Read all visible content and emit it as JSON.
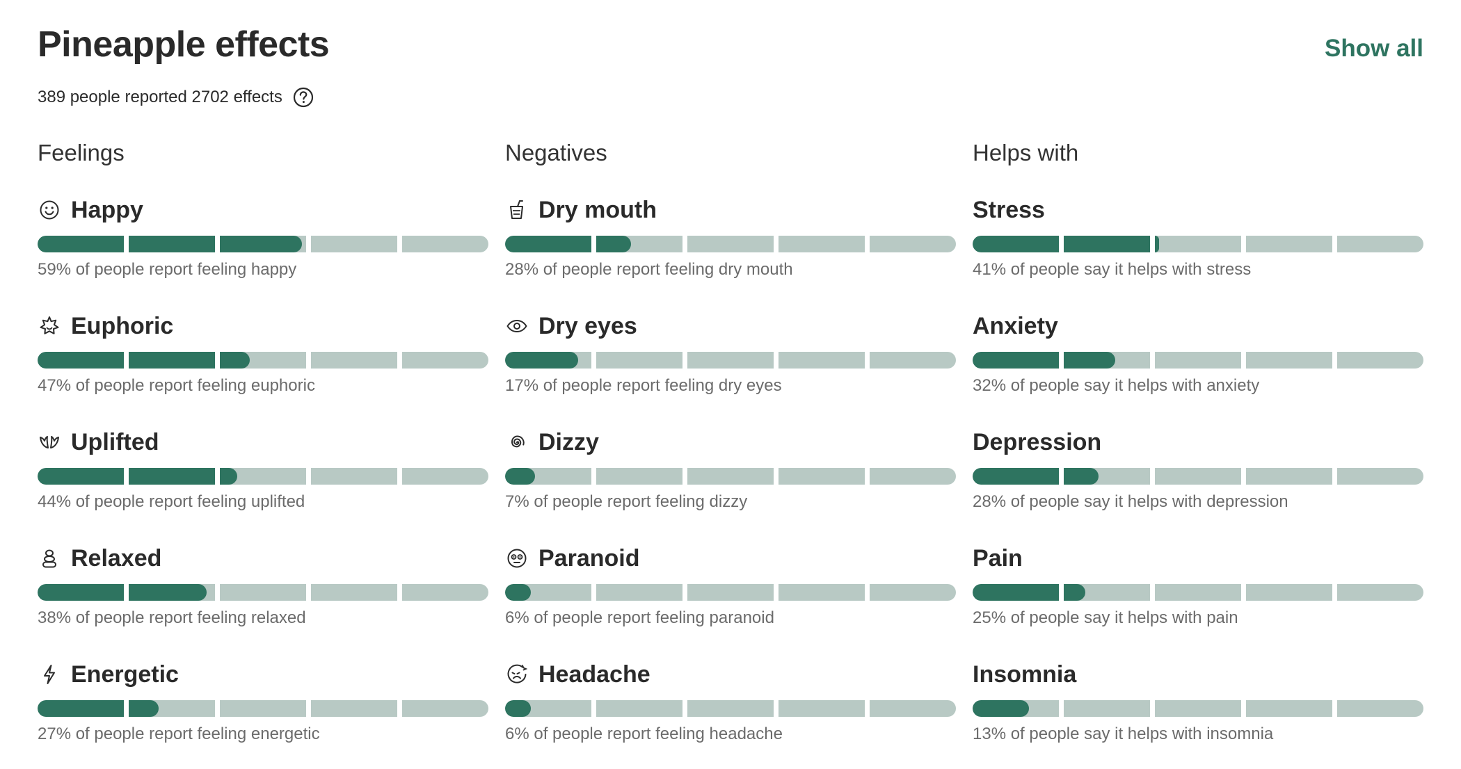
{
  "header": {
    "title": "Pineapple effects",
    "show_all_label": "Show all",
    "summary": "389 people reported 2702 effects",
    "help_icon": "question-circle-icon"
  },
  "colors": {
    "accent": "#2e7460",
    "track": "#b8c9c4",
    "text": "#2b2b2b",
    "muted": "#6b6b6b"
  },
  "columns": [
    {
      "title": "Feelings",
      "effects": [
        {
          "name": "Happy",
          "icon": "smiley-icon",
          "percent": 59,
          "desc": "59% of people report feeling happy"
        },
        {
          "name": "Euphoric",
          "icon": "starburst-icon",
          "percent": 47,
          "desc": "47% of people report feeling euphoric"
        },
        {
          "name": "Uplifted",
          "icon": "wings-icon",
          "percent": 44,
          "desc": "44% of people report feeling uplifted"
        },
        {
          "name": "Relaxed",
          "icon": "stacked-stones-icon",
          "percent": 38,
          "desc": "38% of people report feeling relaxed"
        },
        {
          "name": "Energetic",
          "icon": "lightning-icon",
          "percent": 27,
          "desc": "27% of people report feeling energetic"
        }
      ]
    },
    {
      "title": "Negatives",
      "effects": [
        {
          "name": "Dry mouth",
          "icon": "drink-cup-icon",
          "percent": 28,
          "desc": "28% of people report feeling dry mouth"
        },
        {
          "name": "Dry eyes",
          "icon": "eye-icon",
          "percent": 17,
          "desc": "17% of people report feeling dry eyes"
        },
        {
          "name": "Dizzy",
          "icon": "spiral-icon",
          "percent": 7,
          "desc": "7% of people report feeling dizzy"
        },
        {
          "name": "Paranoid",
          "icon": "worried-face-icon",
          "percent": 6,
          "desc": "6% of people report feeling paranoid"
        },
        {
          "name": "Headache",
          "icon": "headache-face-icon",
          "percent": 6,
          "desc": "6% of people report feeling headache"
        }
      ]
    },
    {
      "title": "Helps with",
      "effects": [
        {
          "name": "Stress",
          "icon": "",
          "percent": 41,
          "desc": "41% of people say it helps with stress"
        },
        {
          "name": "Anxiety",
          "icon": "",
          "percent": 32,
          "desc": "32% of people say it helps with anxiety"
        },
        {
          "name": "Depression",
          "icon": "",
          "percent": 28,
          "desc": "28% of people say it helps with depression"
        },
        {
          "name": "Pain",
          "icon": "",
          "percent": 25,
          "desc": "25% of people say it helps with pain"
        },
        {
          "name": "Insomnia",
          "icon": "",
          "percent": 13,
          "desc": "13% of people say it helps with insomnia"
        }
      ]
    }
  ]
}
